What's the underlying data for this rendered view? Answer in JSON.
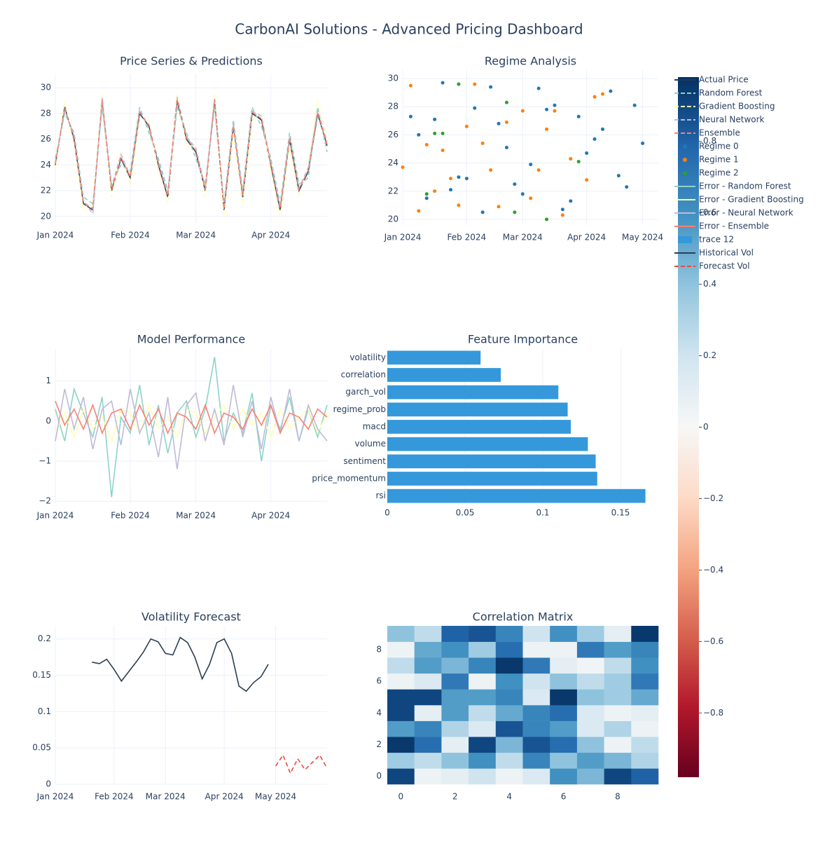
{
  "title": "CarbonAI Solutions - Advanced Pricing Dashboard",
  "chart_data": [
    {
      "type": "line",
      "title": "Price Series & Predictions",
      "categories": [
        "Jan 2024",
        null,
        null,
        null,
        null,
        null,
        null,
        null,
        "Feb 2024",
        null,
        null,
        null,
        null,
        null,
        null,
        "Mar 2024",
        null,
        null,
        null,
        null,
        null,
        null,
        null,
        "Apr 2024",
        null,
        null,
        null,
        null,
        null,
        null
      ],
      "ylim": [
        19.5,
        31.1
      ],
      "yticks": [
        20,
        22,
        24,
        26,
        28,
        30
      ],
      "grid": true,
      "series": [
        {
          "name": "Actual Price",
          "color": "#1f3b5c",
          "dash": "solid",
          "values": [
            24,
            28.5,
            26,
            21,
            20.5,
            29,
            22,
            24.5,
            23,
            28,
            27,
            24,
            21.5,
            29,
            26,
            25,
            22,
            29,
            20.5,
            27,
            21.5,
            28,
            27.5,
            24,
            20.5,
            26,
            22,
            23.5,
            28,
            25.5
          ]
        },
        {
          "name": "Random Forest",
          "color": "#8dd3c7",
          "dash": "dash",
          "values": [
            24.5,
            28,
            26.5,
            21.5,
            21,
            28.5,
            22.5,
            24,
            23.5,
            28.5,
            26.5,
            24.5,
            22,
            28.5,
            26.5,
            24.5,
            22.5,
            28.5,
            21,
            27.5,
            22,
            28.5,
            27,
            24.5,
            21,
            26.5,
            22.5,
            23,
            28.5,
            25
          ]
        },
        {
          "name": "Gradient Boosting",
          "color": "#ffffb3",
          "dash": "dash",
          "values": [
            23.5,
            29,
            25.5,
            20.5,
            20.8,
            29.5,
            21.5,
            25,
            22.5,
            27.5,
            27.5,
            23.5,
            21,
            29.5,
            25.5,
            25.5,
            21.5,
            29.5,
            20,
            26.5,
            21,
            27.5,
            28,
            23.5,
            20,
            25.5,
            21.5,
            24,
            29,
            26
          ]
        },
        {
          "name": "Neural Network",
          "color": "#bebada",
          "dash": "dash",
          "values": [
            24.2,
            28.2,
            26.3,
            21.2,
            20.2,
            29.2,
            22.3,
            24.8,
            23.2,
            28.3,
            26.8,
            24.3,
            21.8,
            29.3,
            26.2,
            25.3,
            22.2,
            29.2,
            20.8,
            27.2,
            21.8,
            28.2,
            27.8,
            24.2,
            20.8,
            26.2,
            22.2,
            23.8,
            28.2,
            25.8
          ]
        },
        {
          "name": "Ensemble",
          "color": "#fb8072",
          "dash": "dash",
          "values": [
            24.1,
            28.4,
            26.1,
            21.1,
            20.6,
            29.1,
            22.1,
            24.6,
            23.1,
            28.1,
            27.1,
            24.1,
            21.6,
            29.1,
            26.1,
            25.1,
            22.1,
            29.1,
            20.6,
            27.1,
            21.6,
            28.1,
            27.6,
            24.1,
            20.6,
            26.1,
            22.1,
            23.6,
            28.1,
            25.6
          ]
        }
      ]
    },
    {
      "type": "scatter",
      "title": "Regime Analysis",
      "categories": [
        "Jan 2024",
        null,
        null,
        null,
        null,
        null,
        null,
        null,
        "Feb 2024",
        null,
        null,
        null,
        null,
        null,
        null,
        "Mar 2024",
        null,
        null,
        null,
        null,
        null,
        null,
        null,
        "Apr 2024",
        null,
        null,
        null,
        null,
        null,
        null,
        "May 2024",
        null
      ],
      "ylim": [
        19.6,
        30.6
      ],
      "yticks": [
        20,
        22,
        24,
        26,
        28,
        30
      ],
      "grid": true,
      "series": [
        {
          "name": "Regime 0",
          "color": "#1f77b4",
          "values": [
            null,
            27.3,
            26,
            21.5,
            27.1,
            29.7,
            22.1,
            23,
            22.9,
            27.9,
            20.5,
            29.4,
            26.8,
            25.1,
            22.5,
            21.8,
            23.9,
            29.3,
            27.8,
            28.1,
            20.7,
            21.3,
            27.3,
            24.7,
            25.7,
            26.4,
            29.1,
            23.1,
            22.3,
            28.1,
            25.4,
            null
          ]
        },
        {
          "name": "Regime 1",
          "color": "#ff7f0e",
          "values": [
            23.7,
            29.5,
            20.6,
            25.3,
            22,
            24.9,
            22.9,
            21,
            26.6,
            29.6,
            25.4,
            23.5,
            20.9,
            26.9,
            null,
            27.7,
            21.5,
            23.5,
            26.4,
            27.7,
            20.3,
            24.3,
            null,
            22.8,
            28.7,
            28.9,
            null,
            null,
            null,
            null,
            null,
            null
          ]
        },
        {
          "name": "Regime 2",
          "color": "#2ca02c",
          "values": [
            null,
            null,
            null,
            21.8,
            26.1,
            26.1,
            null,
            29.6,
            null,
            null,
            null,
            null,
            null,
            28.3,
            20.5,
            null,
            null,
            null,
            20,
            null,
            null,
            null,
            24.1,
            null,
            null,
            null,
            null,
            null,
            null,
            null,
            null,
            null
          ]
        }
      ]
    },
    {
      "type": "line",
      "title": "Model Performance",
      "categories": [
        "Jan 2024",
        null,
        null,
        null,
        null,
        null,
        null,
        null,
        "Feb 2024",
        null,
        null,
        null,
        null,
        null,
        null,
        "Mar 2024",
        null,
        null,
        null,
        null,
        null,
        null,
        null,
        "Apr 2024",
        null,
        null,
        null,
        null,
        null,
        null
      ],
      "ylim": [
        -2.05,
        1.8
      ],
      "yticks": [
        {
          "value": -2,
          "label": "−2"
        },
        {
          "value": -1,
          "label": "−1"
        },
        0,
        1
      ],
      "grid": true,
      "series": [
        {
          "name": "Error - Random Forest",
          "color": "#8dd3c7",
          "dash": "solid",
          "values": [
            0.3,
            -0.5,
            0.8,
            0.2,
            -0.4,
            0.6,
            -1.9,
            0.1,
            -0.3,
            0.9,
            -0.6,
            0.4,
            -0.8,
            0.2,
            0.5,
            -0.4,
            0.3,
            1.6,
            -0.5,
            0.2,
            -0.3,
            0.7,
            -1.0,
            0.4,
            -0.2,
            0.6,
            -0.5,
            0.3,
            -0.4,
            0.4
          ]
        },
        {
          "name": "Error - Gradient Boosting",
          "color": "#ffffb3",
          "dash": "solid",
          "values": [
            -0.3,
            0.2,
            -0.4,
            0.3,
            -0.2,
            0.1,
            -0.5,
            0.3,
            0.2,
            -0.3,
            0.4,
            -0.2,
            0.1,
            -0.4,
            0.3,
            0.2,
            -0.3,
            0.1,
            0.4,
            -0.2,
            0.3,
            -0.1,
            0.2,
            -0.4,
            0.3,
            -0.2,
            0.1,
            0.3,
            -0.3,
            0.2
          ]
        },
        {
          "name": "Error - Neural Network",
          "color": "#bebada",
          "dash": "solid",
          "values": [
            -0.5,
            0.8,
            -0.2,
            0.6,
            -0.7,
            0.3,
            0.5,
            -0.6,
            0.8,
            -0.3,
            0.2,
            -0.9,
            0.6,
            -1.2,
            0.4,
            0.7,
            -0.5,
            0.3,
            -0.6,
            0.9,
            -0.4,
            0.5,
            -0.7,
            0.6,
            -0.3,
            0.8,
            -0.5,
            0.4,
            -0.2,
            -0.5
          ]
        },
        {
          "name": "Error - Ensemble",
          "color": "#fb8072",
          "dash": "solid",
          "values": [
            0.5,
            -0.1,
            0.3,
            -0.2,
            0.4,
            -0.3,
            0.2,
            0.3,
            -0.2,
            0.4,
            -0.1,
            0.3,
            -0.3,
            0.2,
            0.1,
            -0.2,
            0.4,
            -0.3,
            0.2,
            0.1,
            -0.2,
            0.3,
            -0.1,
            0.4,
            -0.3,
            0.2,
            0.1,
            -0.2,
            0.3,
            0.1
          ]
        }
      ]
    },
    {
      "type": "bar",
      "orientation": "h",
      "title": "Feature Importance",
      "name": "trace 12",
      "color": "#3498db",
      "categories": [
        "volatility",
        "correlation",
        "garch_vol",
        "regime_prob",
        "macd",
        "volume",
        "sentiment",
        "price_momentum",
        "rsi"
      ],
      "values": [
        0.06,
        0.073,
        0.11,
        0.116,
        0.118,
        0.129,
        0.134,
        0.135,
        0.166
      ],
      "xlim": [
        0,
        0.1743
      ],
      "xticks": [
        0,
        0.05,
        0.1,
        0.15
      ],
      "grid": true
    },
    {
      "type": "line",
      "title": "Volatility Forecast",
      "categories": [
        "Jan 2024",
        null,
        null,
        null,
        null,
        null,
        null,
        null,
        "Feb 2024",
        null,
        null,
        null,
        null,
        null,
        null,
        "Mar 2024",
        null,
        null,
        null,
        null,
        null,
        null,
        null,
        "Apr 2024",
        null,
        null,
        null,
        null,
        null,
        null,
        "May 2024",
        null,
        null,
        null,
        null,
        null,
        null,
        null
      ],
      "ylim": [
        0,
        0.218
      ],
      "yticks": [
        0,
        0.05,
        0.1,
        0.15,
        0.2
      ],
      "grid": true,
      "series": [
        {
          "name": "Historical Vol",
          "color": "#2c3e50",
          "dash": "solid",
          "values": [
            null,
            null,
            null,
            null,
            null,
            0.168,
            0.166,
            0.172,
            0.158,
            0.142,
            0.155,
            0.168,
            0.182,
            0.2,
            0.196,
            0.18,
            0.178,
            0.202,
            0.195,
            0.175,
            0.145,
            0.165,
            0.195,
            0.2,
            0.18,
            0.135,
            0.128,
            0.14,
            0.148,
            0.165,
            null,
            null,
            null,
            null,
            null,
            null,
            null,
            null
          ]
        },
        {
          "name": "Forecast Vol",
          "color": "#e74c3c",
          "dash": "dash",
          "values": [
            null,
            null,
            null,
            null,
            null,
            null,
            null,
            null,
            null,
            null,
            null,
            null,
            null,
            null,
            null,
            null,
            null,
            null,
            null,
            null,
            null,
            null,
            null,
            null,
            null,
            null,
            null,
            null,
            null,
            null,
            0.025,
            0.04,
            0.015,
            0.035,
            0.02,
            0.03,
            0.04,
            0.022
          ]
        }
      ]
    },
    {
      "type": "heatmap",
      "title": "Correlation Matrix",
      "xlim": [
        -0.5,
        9.5
      ],
      "ylim": [
        -0.5,
        9.5
      ],
      "xticks": [
        0,
        2,
        4,
        6,
        8
      ],
      "yticks": [
        0,
        2,
        4,
        6,
        8
      ],
      "z": [
        [
          0.9,
          0.05,
          0.1,
          0.2,
          0.05,
          0.15,
          0.6,
          0.45,
          0.9,
          0.8
        ],
        [
          0.35,
          0.25,
          0.4,
          0.6,
          0.25,
          0.65,
          0.4,
          0.55,
          0.45,
          0.3
        ],
        [
          0.95,
          0.75,
          0.1,
          0.9,
          0.45,
          0.85,
          0.75,
          0.4,
          0.05,
          0.25
        ],
        [
          0.55,
          0.65,
          0.3,
          0.15,
          0.85,
          0.65,
          0.55,
          0.15,
          0.3,
          0.05
        ],
        [
          0.9,
          0.1,
          0.55,
          0.25,
          0.5,
          0.65,
          0.75,
          0.15,
          0.05,
          0.1
        ],
        [
          0.9,
          0.9,
          0.55,
          0.55,
          0.65,
          0.15,
          0.95,
          0.4,
          0.35,
          0.5
        ],
        [
          0.05,
          0.15,
          0.7,
          0.05,
          0.6,
          0.2,
          0.4,
          0.25,
          0.35,
          0.7
        ],
        [
          0.25,
          0.55,
          0.45,
          0.65,
          0.95,
          0.7,
          0.1,
          0.03,
          0.25,
          0.6
        ],
        [
          0.05,
          0.5,
          0.6,
          0.35,
          0.75,
          0.05,
          0.05,
          0.7,
          0.55,
          0.65
        ],
        [
          0.4,
          0.25,
          0.8,
          0.85,
          0.65,
          0.2,
          0.6,
          0.35,
          0.1,
          0.95
        ]
      ],
      "zlim": [
        -0.98,
        0.98
      ],
      "zticks": [
        0.8,
        0.6,
        0.4,
        0.2,
        0,
        {
          "value": -0.2,
          "label": "−0.2"
        },
        {
          "value": -0.4,
          "label": "−0.4"
        },
        {
          "value": -0.6,
          "label": "−0.6"
        },
        {
          "value": -0.8,
          "label": "−0.8"
        }
      ],
      "colorscale": [
        "#67001f",
        "#b2182b",
        "#d6604d",
        "#f4a582",
        "#fddbc7",
        "#f7f7f7",
        "#d1e5f0",
        "#92c5de",
        "#4393c3",
        "#2166ac",
        "#053061"
      ]
    }
  ]
}
